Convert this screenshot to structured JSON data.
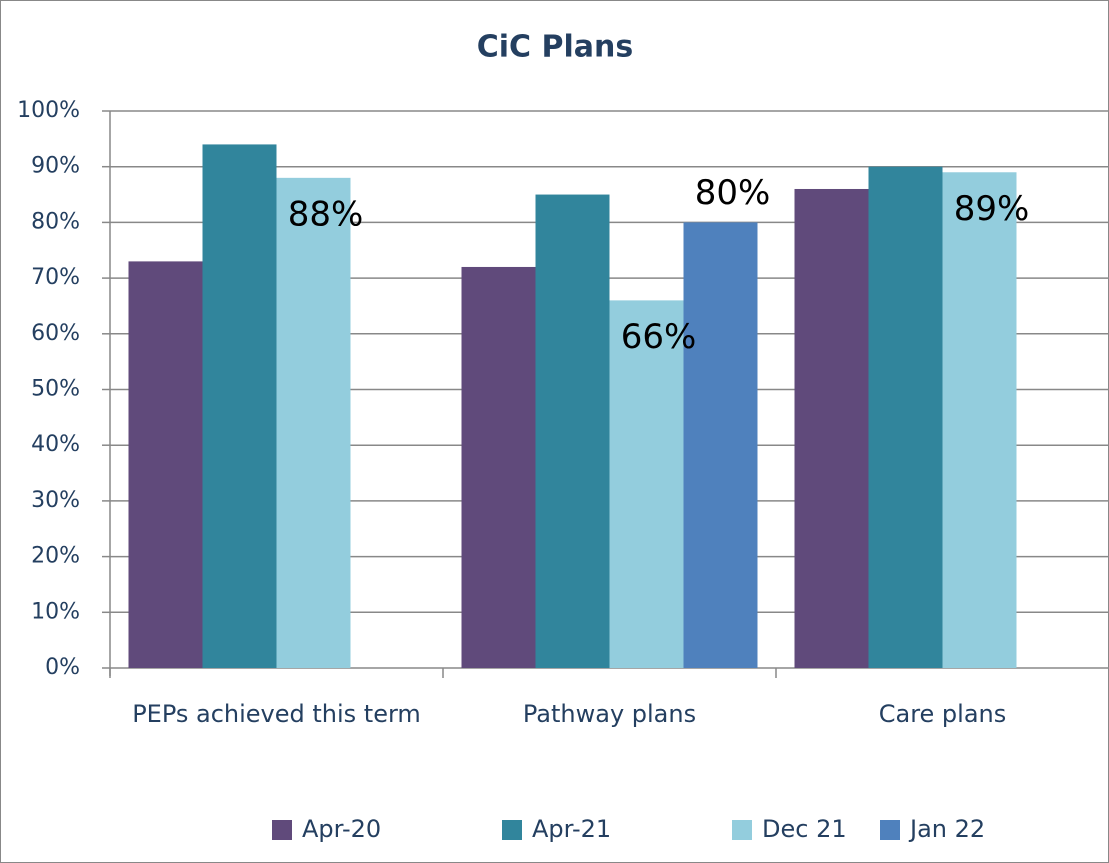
{
  "chart_data": {
    "type": "bar",
    "title": "CiC Plans",
    "categories": [
      "PEPs achieved this term",
      "Pathway plans",
      "Care plans"
    ],
    "series": [
      {
        "name": "Apr-20",
        "color": "#604a7b",
        "values": [
          73,
          72,
          86
        ]
      },
      {
        "name": "Apr-21",
        "color": "#31859c",
        "values": [
          94,
          85,
          90
        ]
      },
      {
        "name": "Dec 21",
        "color": "#93cddd",
        "values": [
          88,
          66,
          89
        ],
        "value_labels": [
          "88%",
          "66%",
          "89%"
        ]
      },
      {
        "name": "Jan 22",
        "color": "#4f81bd",
        "values": [
          null,
          80,
          null
        ],
        "value_labels": [
          null,
          "80%",
          null
        ]
      }
    ],
    "ylim": [
      0,
      100
    ],
    "yticks": [
      {
        "value": 0,
        "label": "0%"
      },
      {
        "value": 10,
        "label": "10%"
      },
      {
        "value": 20,
        "label": "20%"
      },
      {
        "value": 30,
        "label": "30%"
      },
      {
        "value": 40,
        "label": "40%"
      },
      {
        "value": 50,
        "label": "50%"
      },
      {
        "value": 60,
        "label": "60%"
      },
      {
        "value": 70,
        "label": "70%"
      },
      {
        "value": 80,
        "label": "80%"
      },
      {
        "value": 90,
        "label": "90%"
      },
      {
        "value": 100,
        "label": "100%"
      }
    ],
    "grid": true,
    "legend": "bottom"
  }
}
